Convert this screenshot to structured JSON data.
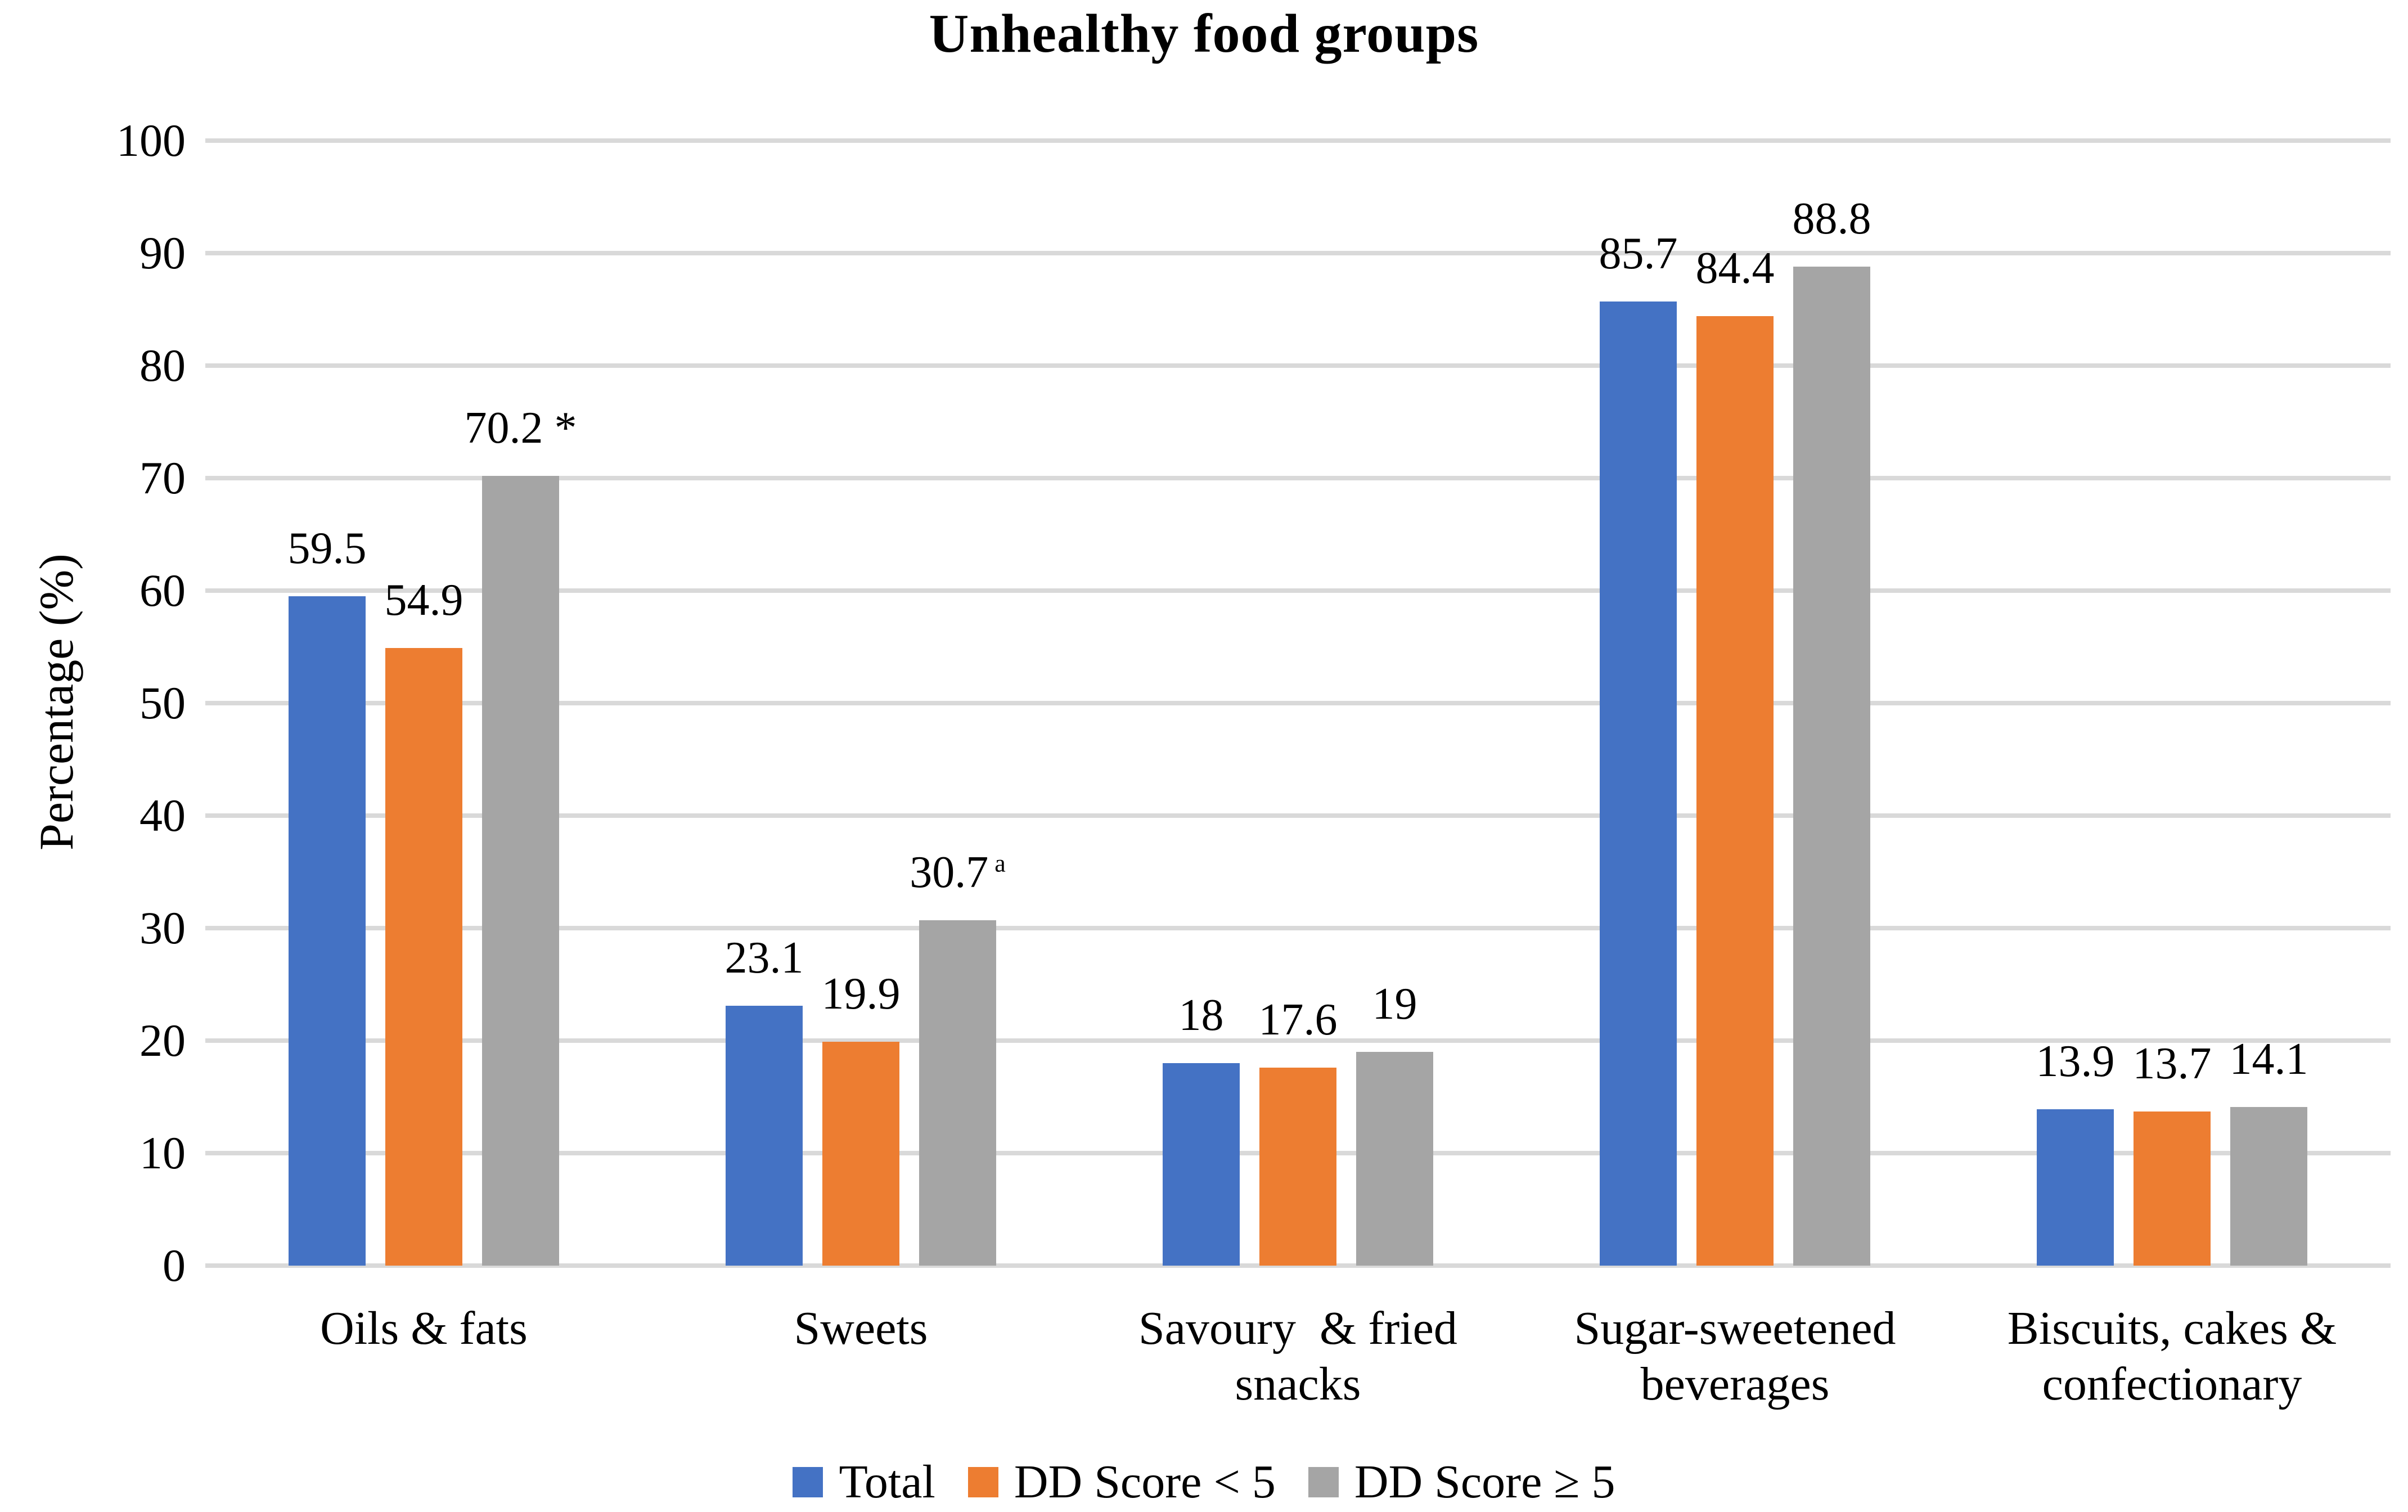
{
  "figure": {
    "background": "#FFFFFF",
    "text_color": "#000000"
  },
  "chart_data": {
    "type": "bar",
    "title": "Unhealthy food groups",
    "ylabel": "Percentage (%)",
    "xlabel": "",
    "ylim": [
      0,
      100
    ],
    "ytick_step": 10,
    "yticks": [
      0,
      10,
      20,
      30,
      40,
      50,
      60,
      70,
      80,
      90,
      100
    ],
    "grid": true,
    "grid_color": "#D9D9D9",
    "legend_position": "bottom",
    "categories": [
      "Oils & fats",
      "Sweets",
      "Savoury  & fried\nsnacks",
      "Sugar-sweetened\nbeverages",
      "Biscuits, cakes &\nconfectionary"
    ],
    "series": [
      {
        "name": "Total",
        "color": "#4472C4",
        "values": [
          59.5,
          23.1,
          18,
          85.7,
          13.9
        ],
        "labels": [
          {
            "text": "59.5"
          },
          {
            "text": "23.1"
          },
          {
            "text": "18"
          },
          {
            "text": "85.7"
          },
          {
            "text": "13.9"
          }
        ]
      },
      {
        "name": "DD Score < 5",
        "color": "#ED7D31",
        "values": [
          54.9,
          19.9,
          17.6,
          84.4,
          13.7
        ],
        "labels": [
          {
            "text": "54.9"
          },
          {
            "text": "19.9"
          },
          {
            "text": "17.6"
          },
          {
            "text": "84.4"
          },
          {
            "text": "13.7"
          }
        ]
      },
      {
        "name": "DD Score ≥ 5",
        "color": "#A5A5A5",
        "values": [
          70.2,
          30.7,
          19,
          88.8,
          14.1
        ],
        "labels": [
          {
            "text": "70.2 *"
          },
          {
            "text": "30.7",
            "sup": "a"
          },
          {
            "text": "19"
          },
          {
            "text": "88.8"
          },
          {
            "text": "14.1"
          }
        ]
      }
    ]
  }
}
